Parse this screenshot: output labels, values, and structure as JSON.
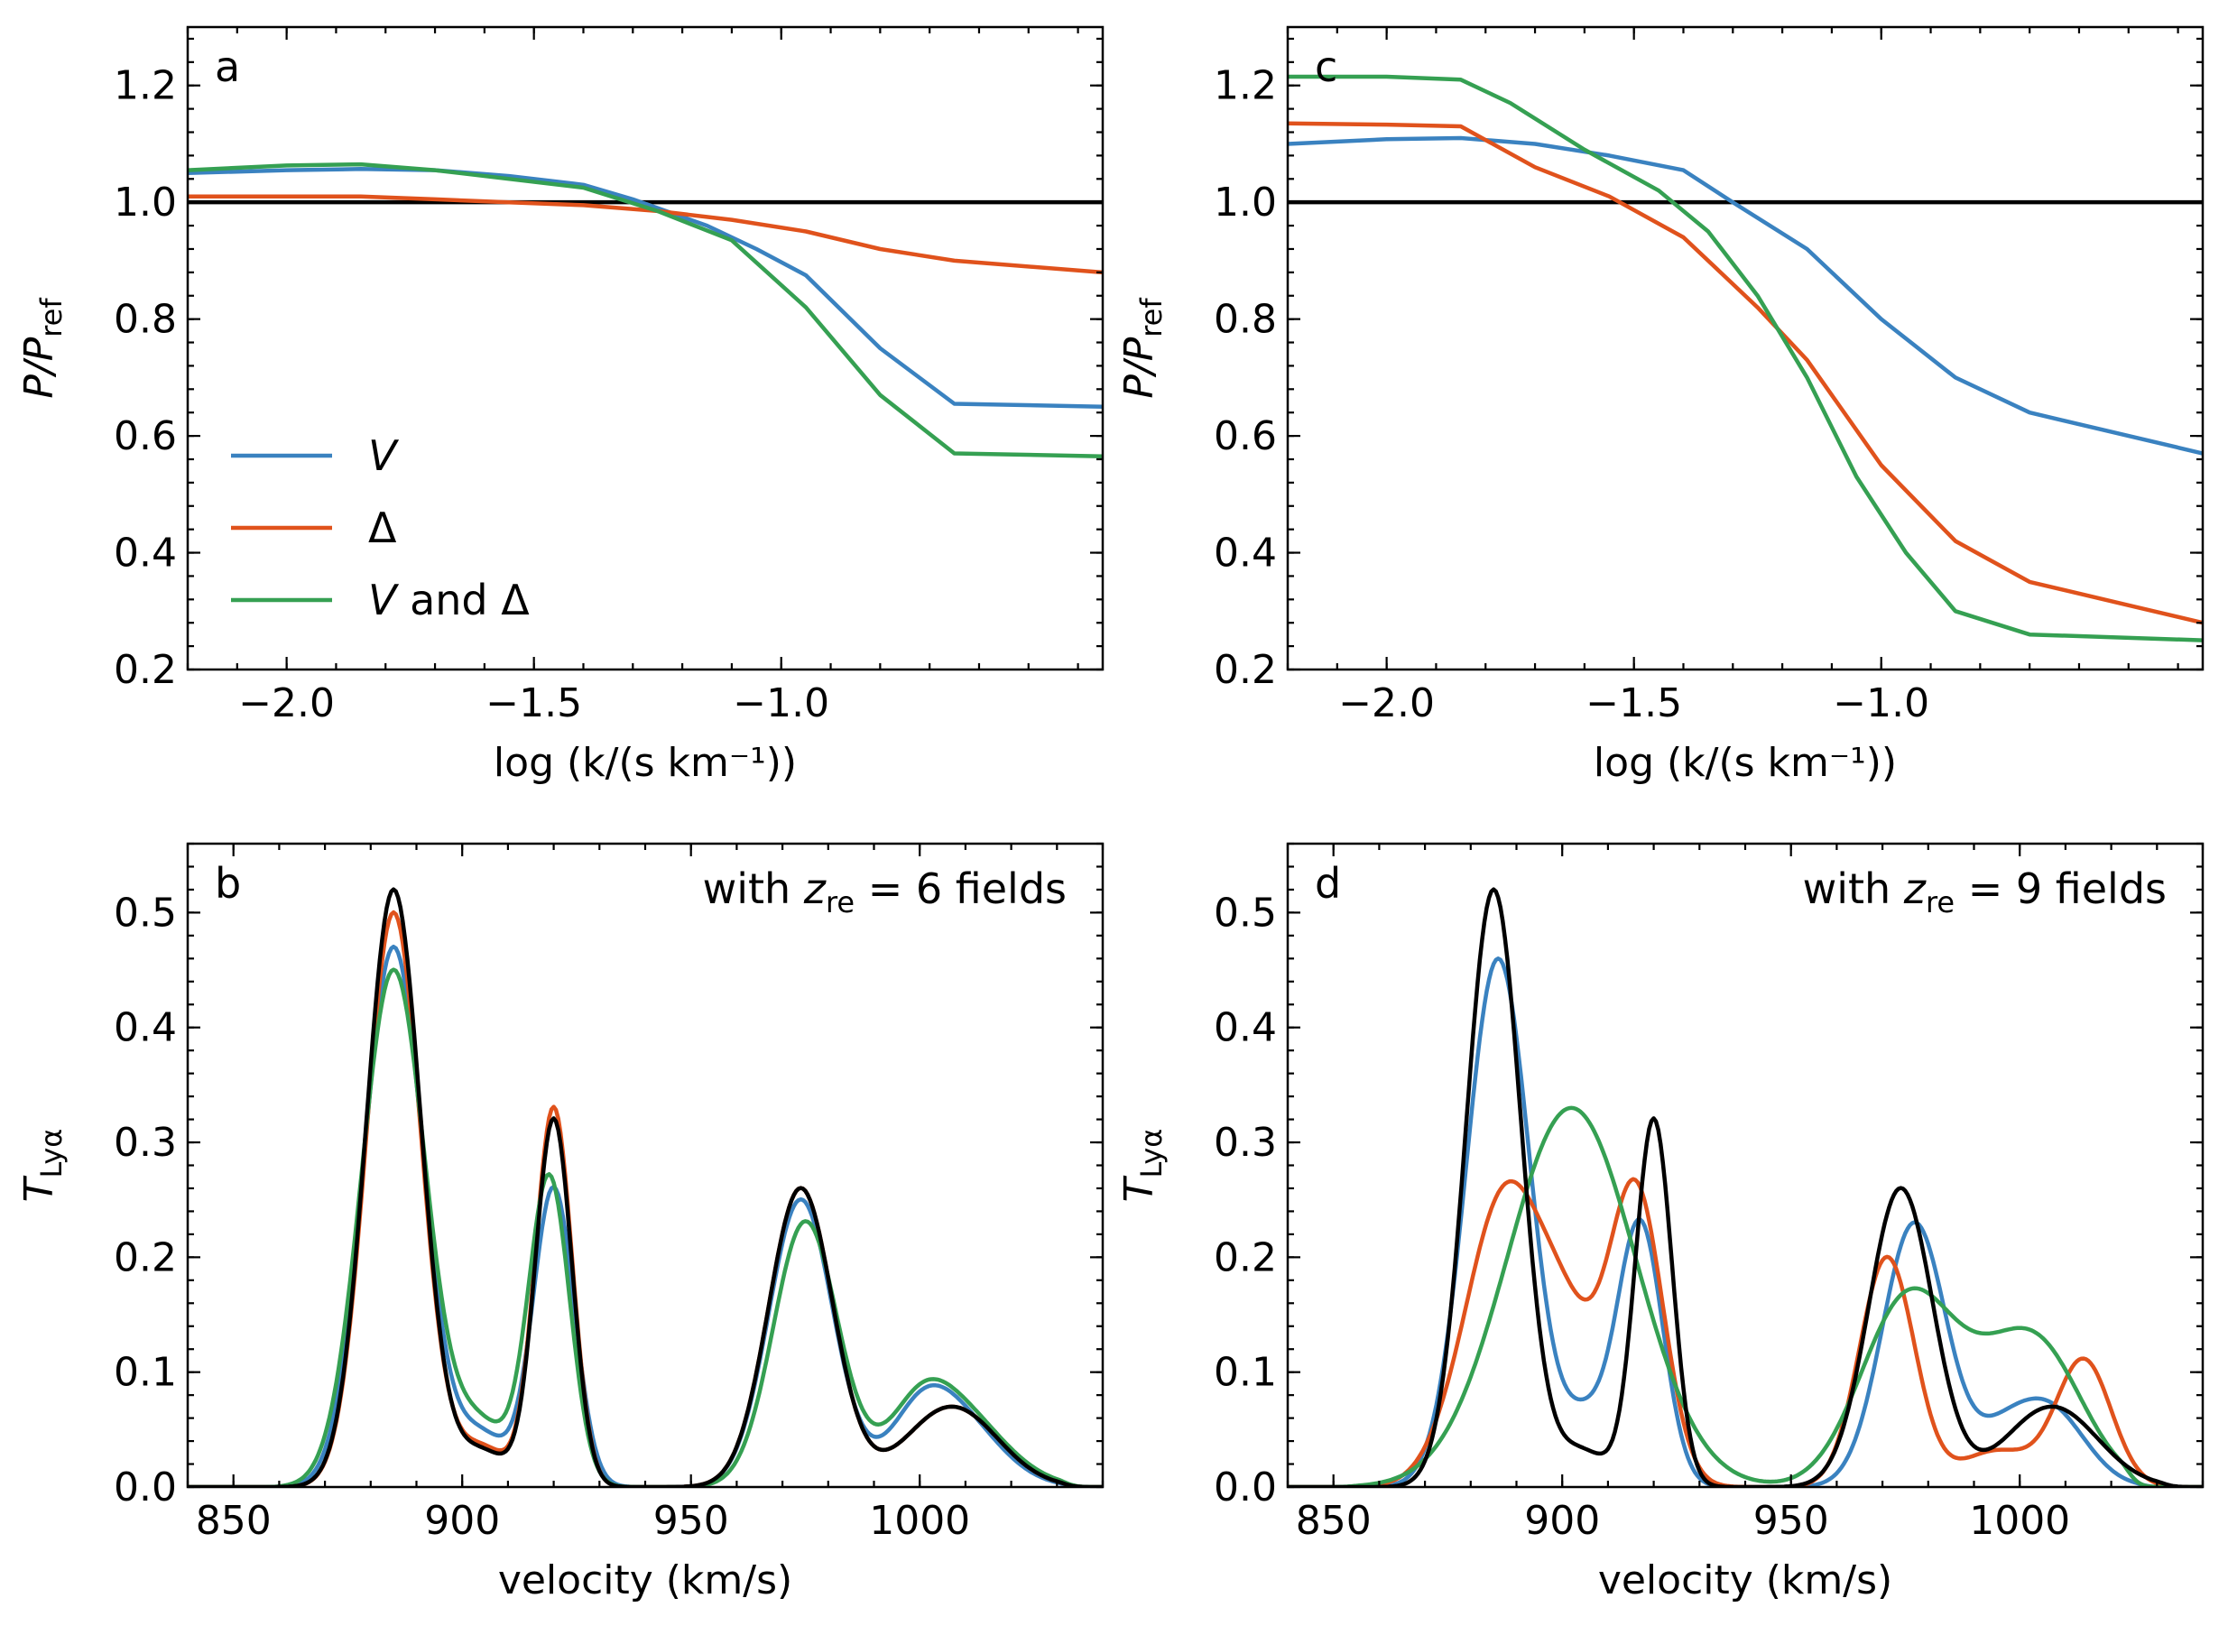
{
  "colors": {
    "V": "#3a82c0",
    "Delta": "#e0521c",
    "VandDelta": "#35a052",
    "reference": "#000000"
  },
  "chart_data": [
    {
      "panel": "a",
      "type": "line",
      "xlabel": "log (k/(s km⁻¹))",
      "ylabel": "P/Pref",
      "xlim": [
        -2.2,
        -0.35
      ],
      "ylim": [
        0.2,
        1.3
      ],
      "xticks": [
        -2.0,
        -1.5,
        -1.0
      ],
      "xtick_labels": [
        "−2.0",
        "−1.5",
        "−1.0"
      ],
      "yticks": [
        0.2,
        0.4,
        0.6,
        0.8,
        1.0,
        1.2
      ],
      "ytick_labels": [
        "0.2",
        "0.4",
        "0.6",
        "0.8",
        "1.0",
        "1.2"
      ],
      "reference_line": 1.0,
      "legend": {
        "location": "lower-left",
        "entries": [
          "V",
          "Δ",
          "V and Δ"
        ]
      },
      "series": [
        {
          "name": "V",
          "color_key": "V",
          "x": [
            -2.2,
            -2.0,
            -1.85,
            -1.7,
            -1.55,
            -1.4,
            -1.3,
            -1.15,
            -1.05,
            -0.95,
            -0.8,
            -0.65,
            -0.35
          ],
          "y": [
            1.05,
            1.055,
            1.057,
            1.055,
            1.045,
            1.03,
            1.005,
            0.96,
            0.92,
            0.875,
            0.75,
            0.655,
            0.65
          ]
        },
        {
          "name": "Δ",
          "color_key": "Delta",
          "x": [
            -2.2,
            -2.0,
            -1.85,
            -1.7,
            -1.55,
            -1.4,
            -1.25,
            -1.1,
            -0.95,
            -0.8,
            -0.65,
            -0.35
          ],
          "y": [
            1.01,
            1.01,
            1.01,
            1.005,
            1.0,
            0.995,
            0.985,
            0.97,
            0.95,
            0.92,
            0.9,
            0.88
          ]
        },
        {
          "name": "V and Δ",
          "color_key": "VandDelta",
          "x": [
            -2.2,
            -2.0,
            -1.85,
            -1.7,
            -1.55,
            -1.4,
            -1.25,
            -1.1,
            -0.95,
            -0.8,
            -0.65,
            -0.35
          ],
          "y": [
            1.055,
            1.063,
            1.065,
            1.055,
            1.04,
            1.025,
            0.985,
            0.935,
            0.82,
            0.67,
            0.57,
            0.565
          ]
        }
      ]
    },
    {
      "panel": "c",
      "type": "line",
      "xlabel": "log (k/(s km⁻¹))",
      "ylabel": "P/Pref",
      "xlim": [
        -2.2,
        -0.35
      ],
      "ylim": [
        0.2,
        1.3
      ],
      "xticks": [
        -2.0,
        -1.5,
        -1.0
      ],
      "xtick_labels": [
        "−2.0",
        "−1.5",
        "−1.0"
      ],
      "yticks": [
        0.2,
        0.4,
        0.6,
        0.8,
        1.0,
        1.2
      ],
      "ytick_labels": [
        "0.2",
        "0.4",
        "0.6",
        "0.8",
        "1.0",
        "1.2"
      ],
      "reference_line": 1.0,
      "series": [
        {
          "name": "V",
          "color_key": "V",
          "x": [
            -2.2,
            -2.0,
            -1.85,
            -1.7,
            -1.55,
            -1.4,
            -1.3,
            -1.15,
            -1.0,
            -0.85,
            -0.7,
            -0.35
          ],
          "y": [
            1.1,
            1.108,
            1.11,
            1.1,
            1.08,
            1.055,
            1.0,
            0.92,
            0.8,
            0.7,
            0.64,
            0.57
          ]
        },
        {
          "name": "Δ",
          "color_key": "Delta",
          "x": [
            -2.2,
            -2.0,
            -1.85,
            -1.7,
            -1.55,
            -1.4,
            -1.25,
            -1.15,
            -1.0,
            -0.85,
            -0.7,
            -0.5,
            -0.35
          ],
          "y": [
            1.135,
            1.133,
            1.13,
            1.06,
            1.01,
            0.94,
            0.82,
            0.73,
            0.55,
            0.42,
            0.35,
            0.31,
            0.28
          ]
        },
        {
          "name": "V and Δ",
          "color_key": "VandDelta",
          "x": [
            -2.2,
            -2.0,
            -1.85,
            -1.75,
            -1.6,
            -1.45,
            -1.35,
            -1.25,
            -1.15,
            -1.05,
            -0.95,
            -0.85,
            -0.7,
            -0.35
          ],
          "y": [
            1.215,
            1.215,
            1.21,
            1.17,
            1.09,
            1.02,
            0.95,
            0.84,
            0.7,
            0.53,
            0.4,
            0.3,
            0.26,
            0.25
          ]
        }
      ]
    },
    {
      "panel": "b",
      "type": "line",
      "annotation": "with zre = 6 fields",
      "annotation_parts": {
        "pre": "with ",
        "var": "z",
        "sub": "re",
        "post": " = 6 fields"
      },
      "xlabel": "velocity (km/s)",
      "ylabel": "TLyα",
      "xlim": [
        840,
        1040
      ],
      "ylim": [
        0.0,
        0.56
      ],
      "xticks": [
        850,
        900,
        950,
        1000
      ],
      "xtick_labels": [
        "850",
        "900",
        "950",
        "1000"
      ],
      "yticks": [
        0.0,
        0.1,
        0.2,
        0.3,
        0.4,
        0.5
      ],
      "ytick_labels": [
        "0.0",
        "0.1",
        "0.2",
        "0.3",
        "0.4",
        "0.5"
      ],
      "series": [
        {
          "name": "V",
          "color_key": "V",
          "peaks": [
            [
              885,
              0.47,
              6.5
            ],
            [
              920,
              0.26,
              4.5
            ],
            [
              974,
              0.25,
              7
            ],
            [
              1006,
              0.07,
              10
            ]
          ],
          "base": [
            [
              904,
              0.13,
              6
            ],
            [
              1000,
              0.07,
              6
            ]
          ],
          "support": [
            862,
            1030
          ]
        },
        {
          "name": "Δ",
          "color_key": "Delta",
          "peaks": [
            [
              885,
              0.5,
              6
            ],
            [
              920,
              0.33,
              4
            ],
            [
              974,
              0.26,
              7
            ],
            [
              1007,
              0.07,
              10
            ]
          ],
          "base": [
            [
              904,
              0.1,
              6
            ]
          ],
          "support": [
            862,
            1030
          ]
        },
        {
          "name": "V and Δ",
          "color_key": "VandDelta",
          "peaks": [
            [
              885,
              0.45,
              7
            ],
            [
              919,
              0.27,
              4.5
            ],
            [
              975,
              0.23,
              7
            ],
            [
              1006,
              0.075,
              11
            ]
          ],
          "base": [
            [
              904,
              0.15,
              6
            ],
            [
              1000,
              0.07,
              6
            ]
          ],
          "support": [
            862,
            1030
          ]
        },
        {
          "name": "reference",
          "color_key": "reference",
          "peaks": [
            [
              885,
              0.52,
              6
            ],
            [
              920,
              0.32,
              4
            ],
            [
              974,
              0.26,
              7
            ],
            [
              1007,
              0.07,
              10
            ]
          ],
          "base": [
            [
              904,
              0.09,
              6
            ]
          ],
          "support": [
            862,
            1030
          ]
        }
      ]
    },
    {
      "panel": "d",
      "type": "line",
      "annotation": "with zre = 9 fields",
      "annotation_parts": {
        "pre": "with ",
        "var": "z",
        "sub": "re",
        "post": " = 9 fields"
      },
      "xlabel": "velocity (km/s)",
      "ylabel": "TLyα",
      "xlim": [
        840,
        1040
      ],
      "ylim": [
        0.0,
        0.56
      ],
      "xticks": [
        850,
        900,
        950,
        1000
      ],
      "xtick_labels": [
        "850",
        "900",
        "950",
        "1000"
      ],
      "yticks": [
        0.0,
        0.1,
        0.2,
        0.3,
        0.4,
        0.5
      ],
      "ytick_labels": [
        "0.0",
        "0.1",
        "0.2",
        "0.3",
        "0.4",
        "0.5"
      ],
      "series": [
        {
          "name": "V",
          "color_key": "V",
          "peaks": [
            [
              886,
              0.46,
              7
            ],
            [
              917,
              0.23,
              5
            ],
            [
              977,
              0.23,
              7
            ],
            [
              1006,
              0.07,
              8
            ]
          ],
          "base": [
            [
              905,
              0.15,
              5
            ],
            [
              995,
              0.08,
              6
            ]
          ],
          "support": [
            862,
            1025
          ]
        },
        {
          "name": "Δ",
          "color_key": "Delta",
          "peaks": [
            [
              888,
              0.26,
              9
            ],
            [
              916,
              0.26,
              6
            ],
            [
              971,
              0.2,
              6
            ],
            [
              1014,
              0.11,
              6
            ]
          ],
          "base": [
            [
              902,
              0.23,
              6
            ],
            [
              995,
              0.09,
              8
            ]
          ],
          "support": [
            858,
            1032
          ]
        },
        {
          "name": "V and Δ",
          "color_key": "VandDelta",
          "peaks": [
            [
              902,
              0.33,
              14
            ],
            [
              975,
              0.155,
              10
            ],
            [
              1004,
              0.115,
              10
            ]
          ],
          "base": [
            [
              990,
              0.12,
              10
            ]
          ],
          "support": [
            856,
            1022
          ]
        },
        {
          "name": "reference",
          "color_key": "reference",
          "peaks": [
            [
              885,
              0.52,
              6
            ],
            [
              920,
              0.32,
              4
            ],
            [
              974,
              0.26,
              7
            ],
            [
              1007,
              0.07,
              10
            ]
          ],
          "base": [
            [
              904,
              0.09,
              6
            ]
          ],
          "support": [
            862,
            1030
          ]
        }
      ]
    }
  ]
}
